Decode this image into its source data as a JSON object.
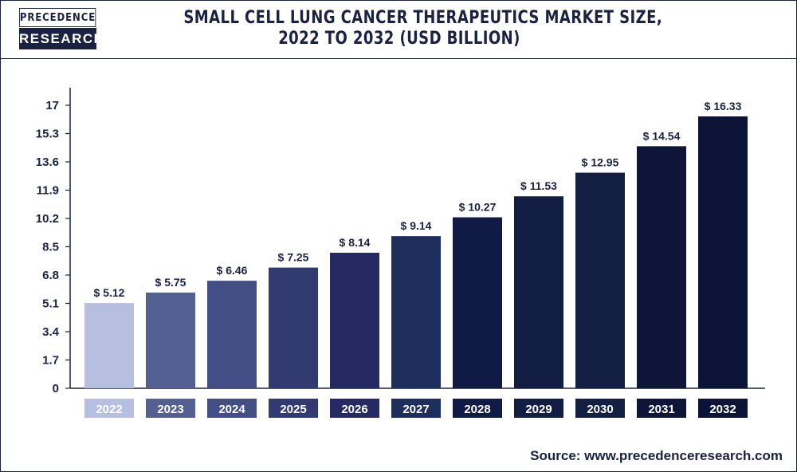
{
  "logo": {
    "line1": "PRECEDENCE",
    "line2": "RESEARCH"
  },
  "title_line1": "SMALL CELL LUNG CANCER THERAPEUTICS MARKET SIZE,",
  "title_line2": "2022 TO 2032 (USD BILLION)",
  "source_label": "Source:",
  "source_url": "www.precedenceresearch.com",
  "chart_data": {
    "type": "bar",
    "categories": [
      "2022",
      "2023",
      "2024",
      "2025",
      "2026",
      "2027",
      "2028",
      "2029",
      "2030",
      "2031",
      "2032"
    ],
    "values": [
      5.12,
      5.75,
      6.46,
      7.25,
      8.14,
      9.14,
      10.27,
      11.53,
      12.95,
      14.54,
      16.33
    ],
    "data_labels": [
      "$ 5.12",
      "$ 5.75",
      "$ 6.46",
      "$ 7.25",
      "$ 8.14",
      "$ 9.14",
      "$ 10.27",
      "$ 11.53",
      "$ 12.95",
      "$ 14.54",
      "$ 16.33"
    ],
    "yticks": [
      "0",
      "1.7",
      "3.4",
      "5.1",
      "6.8",
      "8.5",
      "10.2",
      "11.9",
      "13.6",
      "15.3",
      "17"
    ],
    "ylim": [
      0,
      17
    ],
    "colors": [
      "#b7bfe0",
      "#545f92",
      "#434d86",
      "#323a72",
      "#252b62",
      "#1e2f5e",
      "#0f1a45",
      "#121d44",
      "#132043",
      "#0d1638",
      "#0b1437"
    ],
    "title": "SMALL CELL LUNG CANCER THERAPEUTICS MARKET SIZE, 2022 TO 2032 (USD BILLION)",
    "xlabel": "",
    "ylabel": "",
    "grid": false,
    "legend": "none"
  }
}
